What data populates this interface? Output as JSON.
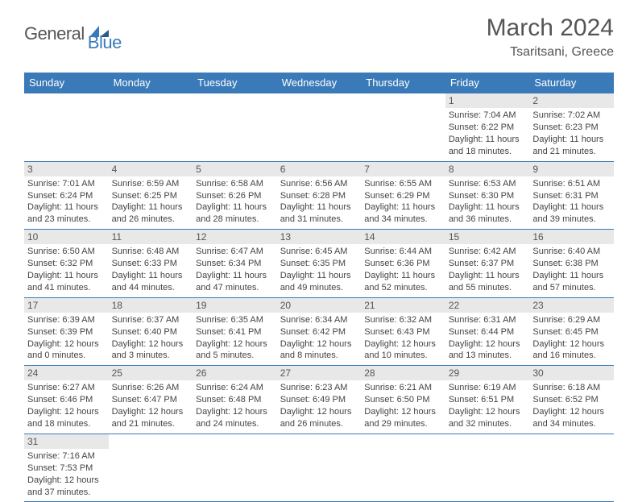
{
  "brand": {
    "part1": "General",
    "part2": "Blue"
  },
  "title": "March 2024",
  "location": "Tsaritsani, Greece",
  "colors": {
    "accent": "#3a7ab8",
    "daynum_bg": "#e8e8e8",
    "text": "#444"
  },
  "dayHeaders": [
    "Sunday",
    "Monday",
    "Tuesday",
    "Wednesday",
    "Thursday",
    "Friday",
    "Saturday"
  ],
  "weeks": [
    [
      null,
      null,
      null,
      null,
      null,
      {
        "n": "1",
        "sr": "Sunrise: 7:04 AM",
        "ss": "Sunset: 6:22 PM",
        "d1": "Daylight: 11 hours",
        "d2": "and 18 minutes."
      },
      {
        "n": "2",
        "sr": "Sunrise: 7:02 AM",
        "ss": "Sunset: 6:23 PM",
        "d1": "Daylight: 11 hours",
        "d2": "and 21 minutes."
      }
    ],
    [
      {
        "n": "3",
        "sr": "Sunrise: 7:01 AM",
        "ss": "Sunset: 6:24 PM",
        "d1": "Daylight: 11 hours",
        "d2": "and 23 minutes."
      },
      {
        "n": "4",
        "sr": "Sunrise: 6:59 AM",
        "ss": "Sunset: 6:25 PM",
        "d1": "Daylight: 11 hours",
        "d2": "and 26 minutes."
      },
      {
        "n": "5",
        "sr": "Sunrise: 6:58 AM",
        "ss": "Sunset: 6:26 PM",
        "d1": "Daylight: 11 hours",
        "d2": "and 28 minutes."
      },
      {
        "n": "6",
        "sr": "Sunrise: 6:56 AM",
        "ss": "Sunset: 6:28 PM",
        "d1": "Daylight: 11 hours",
        "d2": "and 31 minutes."
      },
      {
        "n": "7",
        "sr": "Sunrise: 6:55 AM",
        "ss": "Sunset: 6:29 PM",
        "d1": "Daylight: 11 hours",
        "d2": "and 34 minutes."
      },
      {
        "n": "8",
        "sr": "Sunrise: 6:53 AM",
        "ss": "Sunset: 6:30 PM",
        "d1": "Daylight: 11 hours",
        "d2": "and 36 minutes."
      },
      {
        "n": "9",
        "sr": "Sunrise: 6:51 AM",
        "ss": "Sunset: 6:31 PM",
        "d1": "Daylight: 11 hours",
        "d2": "and 39 minutes."
      }
    ],
    [
      {
        "n": "10",
        "sr": "Sunrise: 6:50 AM",
        "ss": "Sunset: 6:32 PM",
        "d1": "Daylight: 11 hours",
        "d2": "and 41 minutes."
      },
      {
        "n": "11",
        "sr": "Sunrise: 6:48 AM",
        "ss": "Sunset: 6:33 PM",
        "d1": "Daylight: 11 hours",
        "d2": "and 44 minutes."
      },
      {
        "n": "12",
        "sr": "Sunrise: 6:47 AM",
        "ss": "Sunset: 6:34 PM",
        "d1": "Daylight: 11 hours",
        "d2": "and 47 minutes."
      },
      {
        "n": "13",
        "sr": "Sunrise: 6:45 AM",
        "ss": "Sunset: 6:35 PM",
        "d1": "Daylight: 11 hours",
        "d2": "and 49 minutes."
      },
      {
        "n": "14",
        "sr": "Sunrise: 6:44 AM",
        "ss": "Sunset: 6:36 PM",
        "d1": "Daylight: 11 hours",
        "d2": "and 52 minutes."
      },
      {
        "n": "15",
        "sr": "Sunrise: 6:42 AM",
        "ss": "Sunset: 6:37 PM",
        "d1": "Daylight: 11 hours",
        "d2": "and 55 minutes."
      },
      {
        "n": "16",
        "sr": "Sunrise: 6:40 AM",
        "ss": "Sunset: 6:38 PM",
        "d1": "Daylight: 11 hours",
        "d2": "and 57 minutes."
      }
    ],
    [
      {
        "n": "17",
        "sr": "Sunrise: 6:39 AM",
        "ss": "Sunset: 6:39 PM",
        "d1": "Daylight: 12 hours",
        "d2": "and 0 minutes."
      },
      {
        "n": "18",
        "sr": "Sunrise: 6:37 AM",
        "ss": "Sunset: 6:40 PM",
        "d1": "Daylight: 12 hours",
        "d2": "and 3 minutes."
      },
      {
        "n": "19",
        "sr": "Sunrise: 6:35 AM",
        "ss": "Sunset: 6:41 PM",
        "d1": "Daylight: 12 hours",
        "d2": "and 5 minutes."
      },
      {
        "n": "20",
        "sr": "Sunrise: 6:34 AM",
        "ss": "Sunset: 6:42 PM",
        "d1": "Daylight: 12 hours",
        "d2": "and 8 minutes."
      },
      {
        "n": "21",
        "sr": "Sunrise: 6:32 AM",
        "ss": "Sunset: 6:43 PM",
        "d1": "Daylight: 12 hours",
        "d2": "and 10 minutes."
      },
      {
        "n": "22",
        "sr": "Sunrise: 6:31 AM",
        "ss": "Sunset: 6:44 PM",
        "d1": "Daylight: 12 hours",
        "d2": "and 13 minutes."
      },
      {
        "n": "23",
        "sr": "Sunrise: 6:29 AM",
        "ss": "Sunset: 6:45 PM",
        "d1": "Daylight: 12 hours",
        "d2": "and 16 minutes."
      }
    ],
    [
      {
        "n": "24",
        "sr": "Sunrise: 6:27 AM",
        "ss": "Sunset: 6:46 PM",
        "d1": "Daylight: 12 hours",
        "d2": "and 18 minutes."
      },
      {
        "n": "25",
        "sr": "Sunrise: 6:26 AM",
        "ss": "Sunset: 6:47 PM",
        "d1": "Daylight: 12 hours",
        "d2": "and 21 minutes."
      },
      {
        "n": "26",
        "sr": "Sunrise: 6:24 AM",
        "ss": "Sunset: 6:48 PM",
        "d1": "Daylight: 12 hours",
        "d2": "and 24 minutes."
      },
      {
        "n": "27",
        "sr": "Sunrise: 6:23 AM",
        "ss": "Sunset: 6:49 PM",
        "d1": "Daylight: 12 hours",
        "d2": "and 26 minutes."
      },
      {
        "n": "28",
        "sr": "Sunrise: 6:21 AM",
        "ss": "Sunset: 6:50 PM",
        "d1": "Daylight: 12 hours",
        "d2": "and 29 minutes."
      },
      {
        "n": "29",
        "sr": "Sunrise: 6:19 AM",
        "ss": "Sunset: 6:51 PM",
        "d1": "Daylight: 12 hours",
        "d2": "and 32 minutes."
      },
      {
        "n": "30",
        "sr": "Sunrise: 6:18 AM",
        "ss": "Sunset: 6:52 PM",
        "d1": "Daylight: 12 hours",
        "d2": "and 34 minutes."
      }
    ],
    [
      {
        "n": "31",
        "sr": "Sunrise: 7:16 AM",
        "ss": "Sunset: 7:53 PM",
        "d1": "Daylight: 12 hours",
        "d2": "and 37 minutes."
      },
      null,
      null,
      null,
      null,
      null,
      null
    ]
  ]
}
